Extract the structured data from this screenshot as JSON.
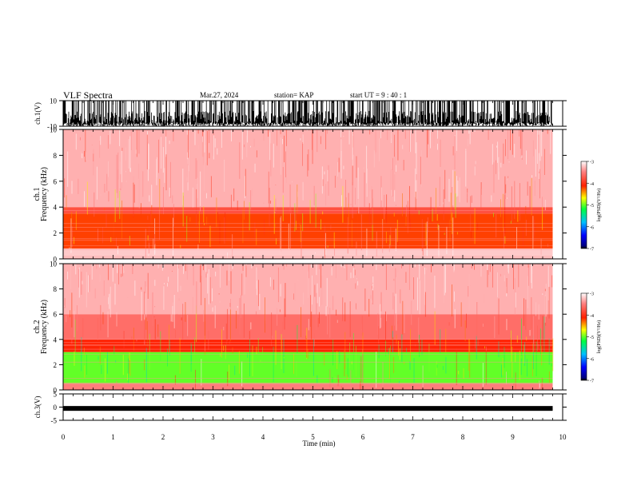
{
  "header": {
    "title": "VLF Spectra",
    "date": "Mar.27, 2024",
    "station": "station= KAP",
    "start": "start  UT =   9 : 40 : 1"
  },
  "chart_data": [
    {
      "type": "line",
      "panel": "ch1-waveform",
      "ylabel": "ch.1(V)",
      "ylim": [
        -10,
        10
      ],
      "yticks": [
        "10",
        "-10"
      ],
      "xlim": [
        0,
        10
      ],
      "color": "#000000",
      "description_of_trace": "dense waveform, mostly near -10 V with frequent spikes toward +10 V, ends at ~9.8 min"
    },
    {
      "type": "heatmap",
      "panel": "ch1-spectrogram",
      "ylabel_top": "ch.1",
      "ylabel": "Frequency (kHz)",
      "ylim": [
        0,
        10
      ],
      "yticks": [
        "0",
        "2",
        "4",
        "6",
        "8",
        "10"
      ],
      "xlim": [
        0,
        10
      ],
      "data_end_min": 9.8,
      "bands_khz": [
        {
          "from": 0,
          "to": 0.8,
          "level": -3.2
        },
        {
          "from": 0.8,
          "to": 3.5,
          "level": -4.2
        },
        {
          "from": 3.5,
          "to": 4.0,
          "level": -3.8
        },
        {
          "from": 4.0,
          "to": 10,
          "level": -3.3
        }
      ],
      "colorbar": {
        "label": "log(PSD)(V²/Hz)",
        "range": [
          -7,
          -3
        ],
        "ticks": [
          "-3",
          "-4",
          "-5",
          "-6",
          "-7"
        ]
      }
    },
    {
      "type": "heatmap",
      "panel": "ch2-spectrogram",
      "ylabel_top": "ch.2",
      "ylabel": "Frequency (kHz)",
      "ylim": [
        0,
        10
      ],
      "yticks": [
        "0",
        "2",
        "4",
        "6",
        "8",
        "10"
      ],
      "xlim": [
        0,
        10
      ],
      "data_end_min": 9.8,
      "bands_khz": [
        {
          "from": 0,
          "to": 0.5,
          "level": -3.5
        },
        {
          "from": 0.5,
          "to": 3.0,
          "level": -5.0
        },
        {
          "from": 3.0,
          "to": 4.0,
          "level": -4.1
        },
        {
          "from": 4.0,
          "to": 6.0,
          "level": -3.6
        },
        {
          "from": 6.0,
          "to": 10,
          "level": -3.3
        }
      ],
      "colorbar": {
        "label": "log(PSD)(V²/Hz)",
        "range": [
          -7,
          -3
        ],
        "ticks": [
          "-3",
          "-4",
          "-5",
          "-6",
          "-7"
        ]
      }
    },
    {
      "type": "line",
      "panel": "ch3-waveform",
      "ylabel": "ch.3(V)",
      "ylim": [
        -5,
        5
      ],
      "yticks": [
        "5",
        "0",
        "-5"
      ],
      "xlim": [
        0,
        10
      ],
      "approx_value": -0.5,
      "color": "#000000"
    }
  ],
  "xaxis": {
    "label": "Time (min)",
    "ticks": [
      "0",
      "1",
      "2",
      "3",
      "4",
      "5",
      "6",
      "7",
      "8",
      "9",
      "10"
    ]
  }
}
